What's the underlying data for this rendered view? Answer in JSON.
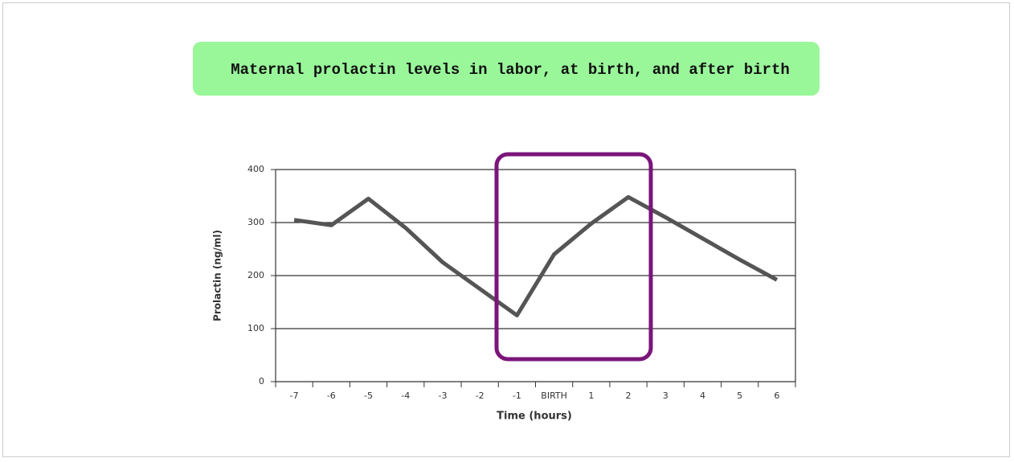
{
  "chart_data": {
    "type": "line",
    "title": "Maternal prolactin levels in labor, at birth, and after birth",
    "xlabel": "Time (hours)",
    "ylabel": "Prolactin (ng/ml)",
    "categories": [
      "-7",
      "-6",
      "-5",
      "-4",
      "-3",
      "-2",
      "-1",
      "BIRTH",
      "1",
      "2",
      "3",
      "4",
      "5",
      "6"
    ],
    "values": [
      305,
      295,
      345,
      290,
      225,
      175,
      125,
      240,
      298,
      348,
      310,
      270,
      230,
      192
    ],
    "color": "#555555",
    "ylim": [
      0,
      400
    ],
    "yticks": [
      0,
      100,
      200,
      300,
      400
    ],
    "grid": true
  }
}
